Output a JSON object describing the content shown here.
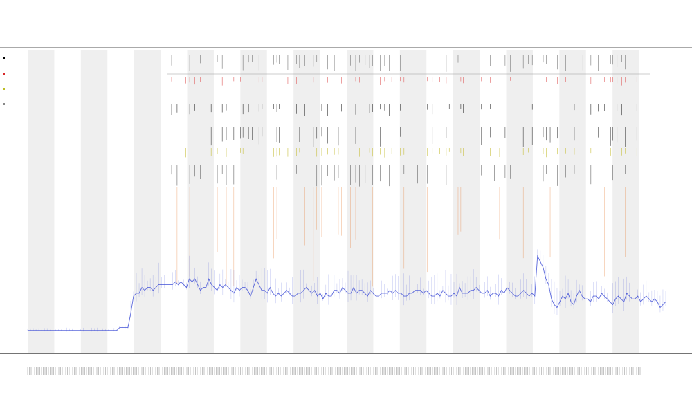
{
  "chart_data": {
    "type": "line",
    "title": "",
    "subtitle_lines": [],
    "xlabel": "",
    "ylabel": "",
    "grid": false,
    "shaded_bands": true,
    "legend": {
      "placement": "top-left",
      "entries": [
        {
          "name": "",
          "color": "#000000"
        },
        {
          "name": "",
          "color": "#d62728"
        },
        {
          "name": "",
          "color": "#bcbd22"
        },
        {
          "name": "",
          "color": "#888888"
        }
      ]
    },
    "n_bands": 24,
    "x_range": [
      0,
      240
    ],
    "y_range": [
      0,
      100
    ],
    "series": [
      {
        "name": "",
        "color": "#3f4fd6",
        "kind": "trace",
        "values": [
          2,
          2,
          2,
          2,
          2,
          2,
          2,
          2,
          2,
          2,
          2,
          2,
          2,
          2,
          2,
          2,
          2,
          2,
          2,
          2,
          2,
          2,
          2,
          2,
          2,
          2,
          2,
          2,
          2,
          2,
          2,
          2,
          2,
          3,
          3,
          3,
          3,
          8,
          14,
          15,
          15,
          17,
          16,
          17,
          17,
          16,
          17,
          18,
          18,
          18,
          18,
          18,
          18,
          19,
          18,
          19,
          18,
          17,
          20,
          19,
          20,
          18,
          16,
          17,
          17,
          20,
          18,
          17,
          16,
          18,
          17,
          18,
          17,
          16,
          15,
          17,
          16,
          17,
          17,
          16,
          14,
          17,
          20,
          18,
          16,
          16,
          15,
          17,
          15,
          14,
          15,
          14,
          15,
          16,
          15,
          14,
          14,
          15,
          15,
          16,
          17,
          16,
          15,
          16,
          14,
          15,
          13,
          15,
          14,
          14,
          16,
          16,
          15,
          17,
          16,
          15,
          15,
          17,
          15,
          16,
          16,
          15,
          14,
          16,
          15,
          14,
          14,
          15,
          15,
          15,
          16,
          15,
          16,
          15,
          15,
          14,
          14,
          15,
          15,
          16,
          16,
          16,
          15,
          16,
          15,
          14,
          14,
          15,
          14,
          16,
          15,
          14,
          14,
          15,
          14,
          17,
          15,
          15,
          15,
          16,
          16,
          17,
          16,
          15,
          15,
          16,
          14,
          15,
          15,
          14,
          16,
          15,
          17,
          16,
          15,
          14,
          14,
          15,
          16,
          15,
          14,
          15,
          14,
          28,
          26,
          24,
          20,
          18,
          13,
          11,
          10,
          12,
          14,
          13,
          15,
          12,
          11,
          14,
          16,
          14,
          13,
          13,
          12,
          14,
          14,
          13,
          15,
          14,
          13,
          12,
          11,
          13,
          14,
          13,
          12,
          15,
          14,
          13,
          13,
          14,
          12,
          13,
          14,
          13,
          12,
          13,
          12,
          10,
          11,
          12
        ]
      }
    ]
  }
}
